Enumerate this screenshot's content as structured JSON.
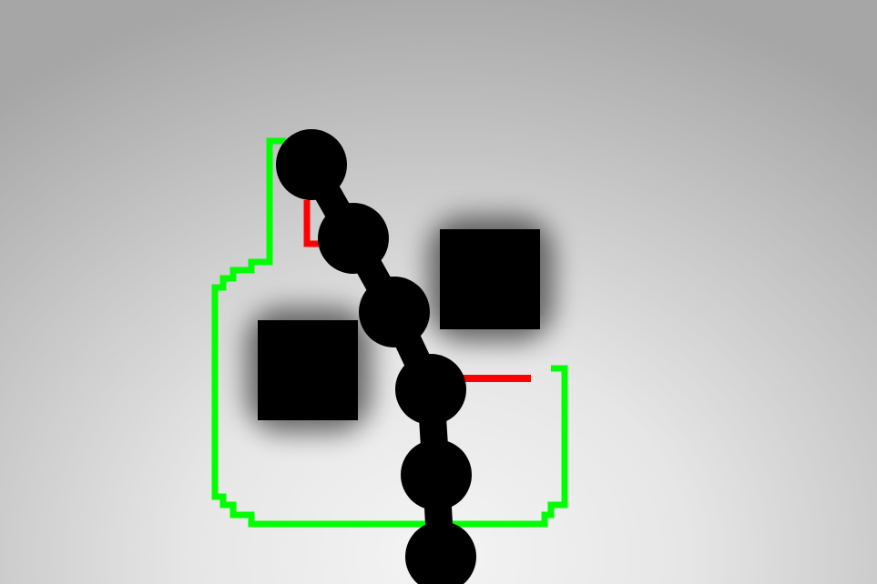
{
  "scene": {
    "background": "radial-gradient-gray",
    "colors": {
      "boundary": "#00ff00",
      "target_segment": "#ff0000",
      "obstacle": "#000000",
      "obstacle_shadow": "#000000",
      "chain": "#000000"
    },
    "elements": {
      "boundary": "green-boundary-outline",
      "targets": [
        "red-target-segment",
        "red-target-segment"
      ],
      "obstacles": [
        "black-square-obstacle",
        "black-square-obstacle"
      ],
      "chain": {
        "joint_count": 6,
        "joint_shape": "circle"
      }
    }
  }
}
